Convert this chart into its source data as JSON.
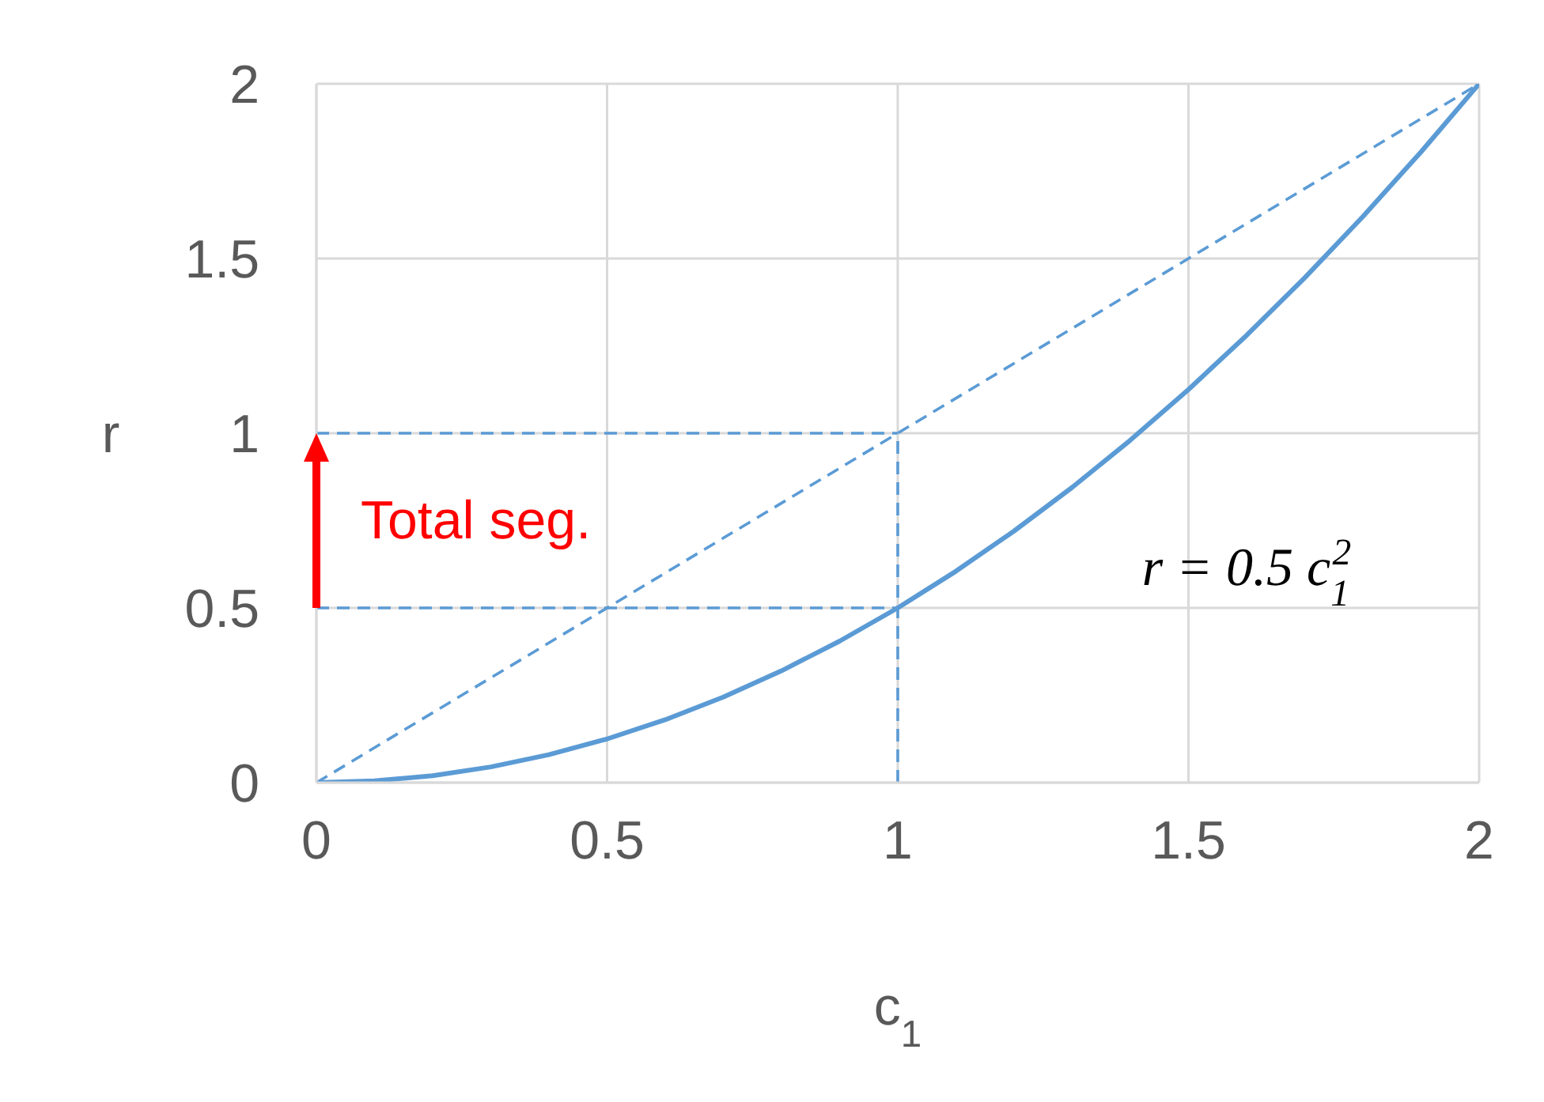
{
  "chart_data": {
    "type": "line",
    "xlabel": "c$_{1}$",
    "ylabel": "r",
    "xlim": [
      0,
      2
    ],
    "ylim": [
      0,
      2
    ],
    "xticks": [
      0,
      0.5,
      1,
      1.5,
      2
    ],
    "yticks": [
      0,
      0.5,
      1,
      1.5,
      2
    ],
    "grid": true,
    "marker": "none",
    "series": [
      {
        "color": "#5b9bd5",
        "line_style": "solid",
        "x": [
          0,
          0.1,
          0.2,
          0.3,
          0.4,
          0.5,
          0.6,
          0.7,
          0.8,
          0.9,
          1,
          1.1,
          1.2,
          1.3,
          1.4,
          1.5,
          1.6,
          1.7,
          1.8,
          1.9,
          2
        ],
        "values": [
          0,
          0.005,
          0.02,
          0.045,
          0.08,
          0.125,
          0.18,
          0.245,
          0.32,
          0.405,
          0.5,
          0.605,
          0.72,
          0.845,
          0.98,
          1.125,
          1.28,
          1.445,
          1.62,
          1.805,
          2
        ]
      },
      {
        "color": "#5b9bd5",
        "line_style": "dashed",
        "x": [
          0,
          2
        ],
        "values": [
          0,
          2
        ]
      },
      {
        "color": "#5b9bd5",
        "line_style": "dashed",
        "x": [
          0,
          1
        ],
        "values": [
          1,
          1
        ]
      },
      {
        "color": "#5b9bd5",
        "line_style": "dashed",
        "x": [
          0,
          1
        ],
        "values": [
          0.5,
          0.5
        ]
      },
      {
        "color": "#5b9bd5",
        "line_style": "dashed",
        "x": [
          1,
          1
        ],
        "values": [
          0,
          1
        ]
      }
    ],
    "annotations": [
      {
        "text": "Total seg.",
        "x": 0,
        "y": 1
      },
      "r = 0.5 c$_{1}$$^{2}$"
    ]
  }
}
